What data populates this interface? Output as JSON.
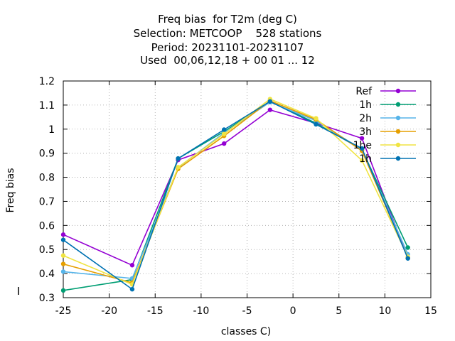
{
  "chart_data": {
    "type": "line",
    "title_lines": [
      "Freq bias  for T2m (deg C)",
      "Selection: METCOOP    528 stations",
      "Period: 20231101-20231107",
      "Used  00,06,12,18 + 00 01 ... 12"
    ],
    "xlabel": "classes C)",
    "ylabel": "Freq bias",
    "xlim": [
      -25,
      15
    ],
    "ylim": [
      0.3,
      1.2
    ],
    "xticks": [
      -25,
      -20,
      -15,
      -10,
      -5,
      0,
      5,
      10,
      15
    ],
    "yticks": [
      0.3,
      0.4,
      0.5,
      0.6,
      0.7,
      0.8,
      0.9,
      1,
      1.1,
      1.2
    ],
    "grid": true,
    "legend_position": "top-right",
    "x": [
      -25,
      -17.5,
      -12.5,
      -7.5,
      -2.5,
      2.5,
      7.5,
      12.5
    ],
    "series": [
      {
        "name": "Ref",
        "color": "#9400d3",
        "values": [
          0.562,
          0.435,
          0.872,
          0.94,
          1.08,
          1.025,
          0.962,
          0.465
        ]
      },
      {
        "name": "1h",
        "color": "#009e73",
        "values": [
          0.33,
          0.375,
          0.878,
          0.99,
          1.115,
          1.025,
          0.915,
          0.508
        ]
      },
      {
        "name": "2h",
        "color": "#56b4e9",
        "values": [
          0.408,
          0.38,
          0.84,
          0.985,
          1.112,
          1.035,
          0.915,
          0.48
        ]
      },
      {
        "name": "3h",
        "color": "#e69f00",
        "values": [
          0.44,
          0.362,
          0.835,
          0.972,
          1.118,
          1.04,
          0.91,
          0.465
        ]
      },
      {
        "name": "1he",
        "color": "#f0e442",
        "values": [
          0.475,
          0.355,
          0.842,
          0.98,
          1.125,
          1.045,
          0.87,
          0.47
        ]
      },
      {
        "name": "1h",
        "color": "#0072b2",
        "values": [
          0.54,
          0.335,
          0.878,
          0.998,
          1.115,
          1.02,
          0.92,
          0.463
        ]
      }
    ]
  }
}
